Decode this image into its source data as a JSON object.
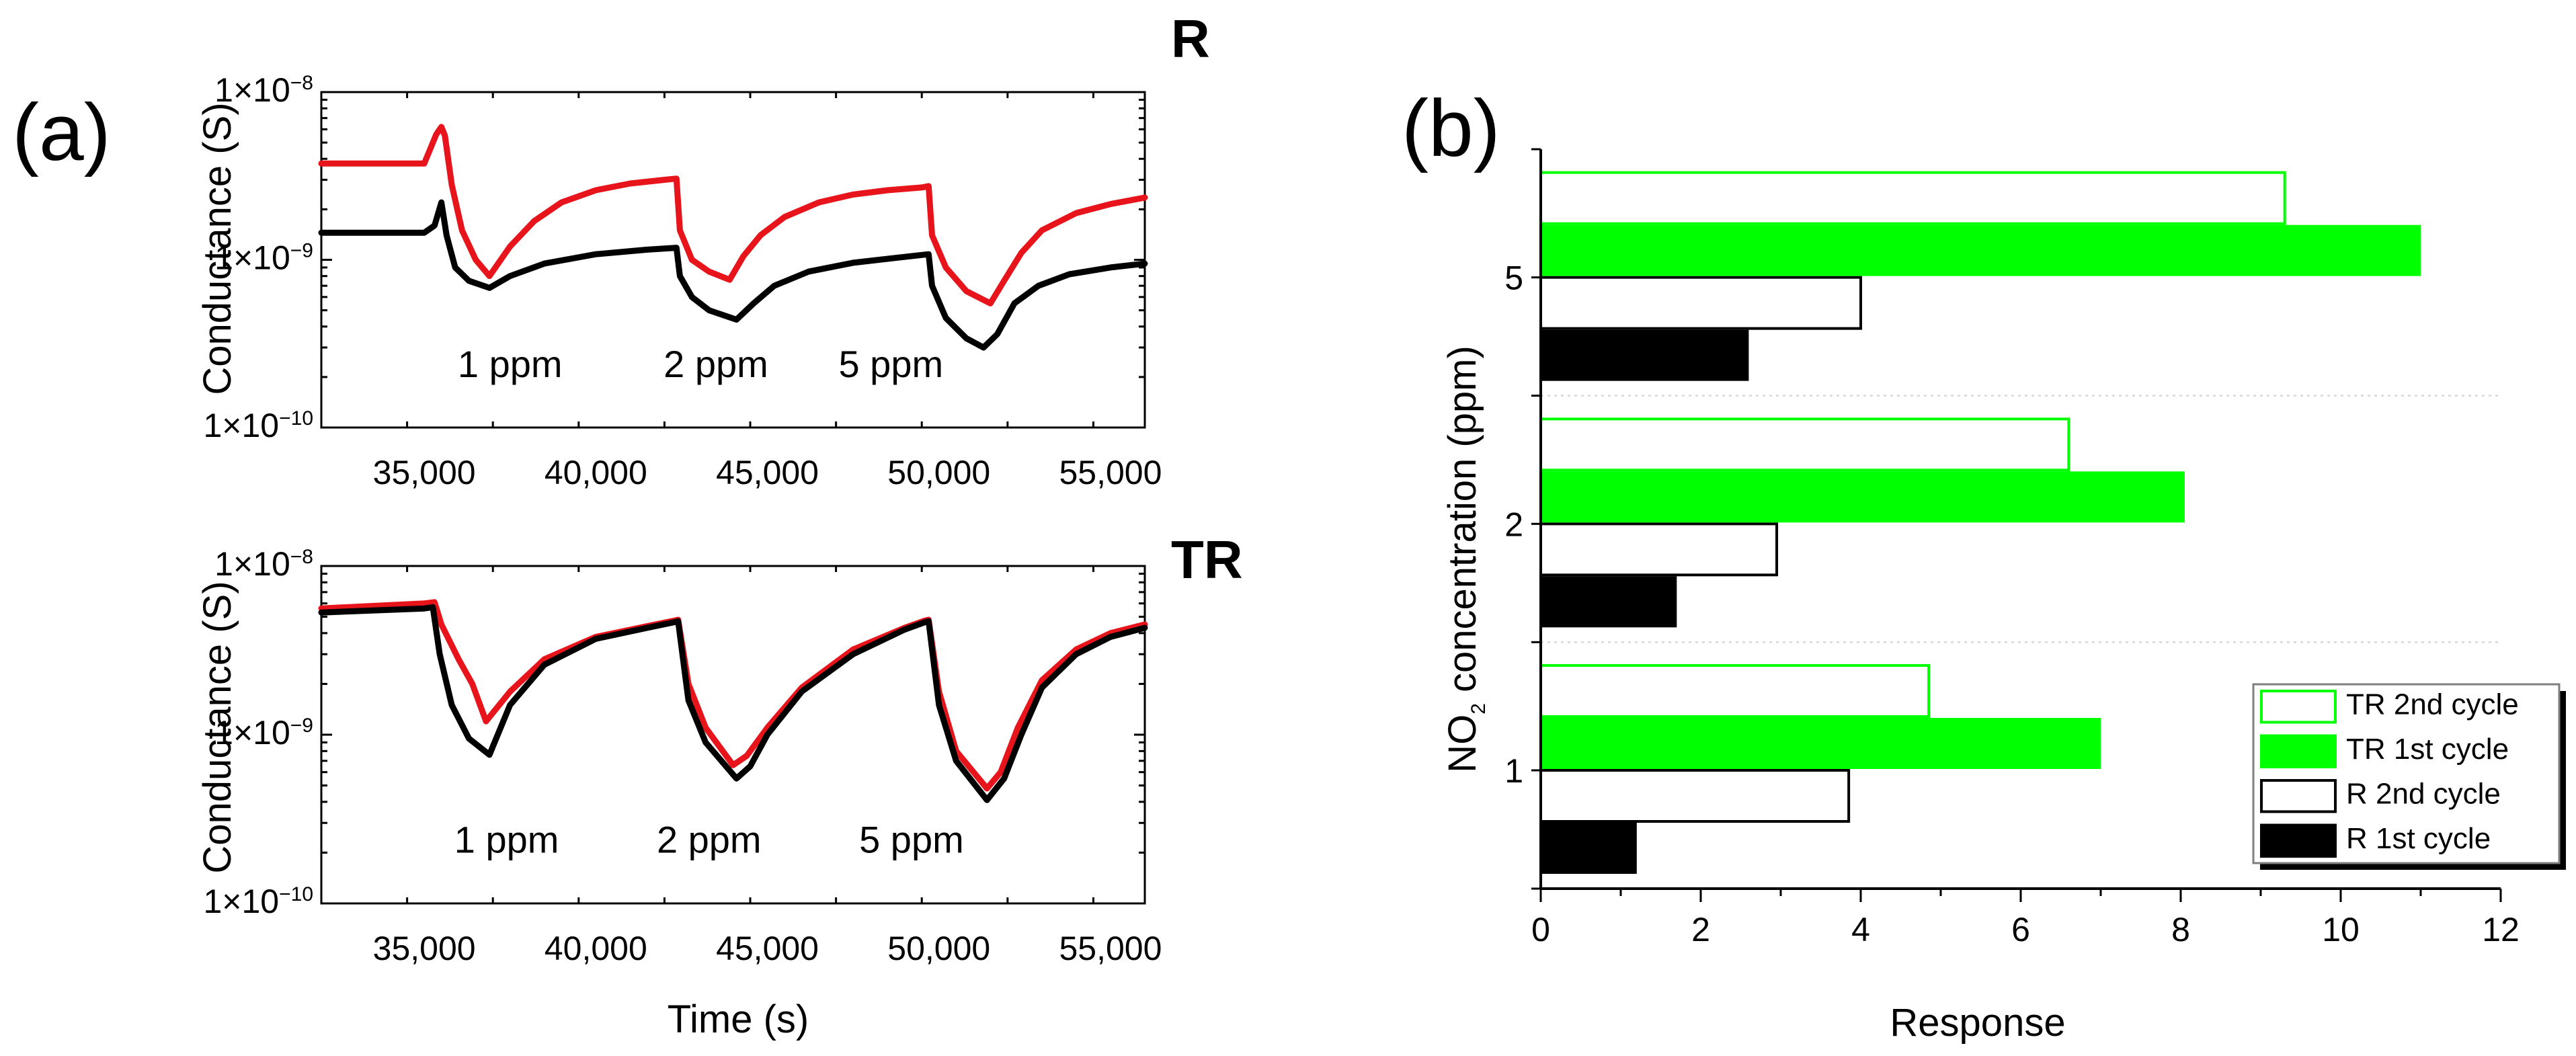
{
  "figure": {
    "panel_a_label": "(a)",
    "panel_b_label": "(b)"
  },
  "chart_data": [
    {
      "type": "line",
      "id": "top",
      "sample_tag": "R",
      "ylabel": "Conductance (S)",
      "xlabel": "",
      "xlim": [
        32000,
        56000
      ],
      "ylim": [
        1e-10,
        1e-08
      ],
      "yscale": "log",
      "x_ticks": [
        35000,
        40000,
        45000,
        50000,
        55000
      ],
      "x_tick_labels": [
        "35,000",
        "40,000",
        "45,000",
        "50,000",
        "55,000"
      ],
      "y_tick_labels": [
        {
          "base": "1×10",
          "exp": "−8",
          "value": 1e-08
        },
        {
          "base": "1×10",
          "exp": "−9",
          "value": 1e-09
        },
        {
          "base": "1×10",
          "exp": "−10",
          "value": 1e-10
        }
      ],
      "annotations": [
        {
          "text": "1 ppm",
          "x": 37500,
          "y": 2e-10
        },
        {
          "text": "2 ppm",
          "x": 43500,
          "y": 2e-10
        },
        {
          "text": "5 ppm",
          "x": 48600,
          "y": 2e-10
        }
      ],
      "series": [
        {
          "name": "red curve",
          "color": "#e8141c",
          "x": [
            32000,
            35000,
            35350,
            35500,
            35600,
            35800,
            36100,
            36500,
            36900,
            37500,
            38200,
            39000,
            40000,
            41000,
            42000,
            42350,
            42450,
            42800,
            43300,
            43900,
            44300,
            44800,
            45500,
            46500,
            47500,
            48500,
            49500,
            49700,
            49800,
            50200,
            50800,
            51500,
            51900,
            52400,
            53000,
            54000,
            55000,
            56000
          ],
          "y": [
            3.75e-09,
            3.75e-09,
            5.6e-09,
            6.2e-09,
            5.5e-09,
            2.8e-09,
            1.5e-09,
            1e-09,
            8e-10,
            1.2e-09,
            1.7e-09,
            2.2e-09,
            2.6e-09,
            2.85e-09,
            3e-09,
            3.05e-09,
            1.5e-09,
            1e-09,
            8.5e-10,
            7.6e-10,
            1.05e-09,
            1.4e-09,
            1.8e-09,
            2.2e-09,
            2.45e-09,
            2.6e-09,
            2.7e-09,
            2.75e-09,
            1.4e-09,
            9e-10,
            6.5e-10,
            5.5e-10,
            7.5e-10,
            1.1e-09,
            1.5e-09,
            1.9e-09,
            2.15e-09,
            2.35e-09
          ]
        },
        {
          "name": "black curve",
          "color": "#000000",
          "x": [
            32000,
            35000,
            35300,
            35500,
            35650,
            35900,
            36300,
            36900,
            37500,
            38500,
            40000,
            41500,
            42350,
            42450,
            42800,
            43300,
            44100,
            44600,
            45200,
            46200,
            47500,
            48800,
            49700,
            49800,
            50200,
            50800,
            51300,
            51700,
            52200,
            52900,
            53800,
            55000,
            56000
          ],
          "y": [
            1.45e-09,
            1.45e-09,
            1.6e-09,
            2.2e-09,
            1.4e-09,
            9e-10,
            7.5e-10,
            6.8e-10,
            8e-10,
            9.5e-10,
            1.08e-09,
            1.15e-09,
            1.18e-09,
            8e-10,
            6e-10,
            5e-10,
            4.4e-10,
            5.5e-10,
            7e-10,
            8.5e-10,
            9.6e-10,
            1.03e-09,
            1.08e-09,
            7e-10,
            4.5e-10,
            3.4e-10,
            3e-10,
            3.6e-10,
            5.5e-10,
            7e-10,
            8.2e-10,
            9e-10,
            9.5e-10
          ]
        }
      ]
    },
    {
      "type": "line",
      "id": "bottom",
      "sample_tag": "TR",
      "ylabel": "Conductance (S)",
      "xlabel": "Time (s)",
      "xlim": [
        32000,
        56000
      ],
      "ylim": [
        1e-10,
        1e-08
      ],
      "yscale": "log",
      "x_ticks": [
        35000,
        40000,
        45000,
        50000,
        55000
      ],
      "x_tick_labels": [
        "35,000",
        "40,000",
        "45,000",
        "50,000",
        "55,000"
      ],
      "y_tick_labels": [
        {
          "base": "1×10",
          "exp": "−8",
          "value": 1e-08
        },
        {
          "base": "1×10",
          "exp": "−9",
          "value": 1e-09
        },
        {
          "base": "1×10",
          "exp": "−10",
          "value": 1e-10
        }
      ],
      "annotations": [
        {
          "text": "1 ppm",
          "x": 37400,
          "y": 2e-10
        },
        {
          "text": "2 ppm",
          "x": 43300,
          "y": 2e-10
        },
        {
          "text": "5 ppm",
          "x": 49200,
          "y": 2e-10
        }
      ],
      "series": [
        {
          "name": "red curve",
          "color": "#e8141c",
          "x": [
            32000,
            35000,
            35300,
            35500,
            36000,
            36400,
            36800,
            37500,
            38500,
            40000,
            41500,
            42300,
            42400,
            42700,
            43200,
            44000,
            44400,
            45000,
            46000,
            47500,
            49000,
            49600,
            49700,
            50000,
            50500,
            51400,
            51800,
            52300,
            53000,
            54000,
            55000,
            56000
          ],
          "y": [
            5.6e-09,
            6e-09,
            6.1e-09,
            4.5e-09,
            2.8e-09,
            2e-09,
            1.2e-09,
            1.8e-09,
            2.8e-09,
            3.8e-09,
            4.4e-09,
            4.75e-09,
            4.8e-09,
            2e-09,
            1.1e-09,
            6.6e-10,
            7.5e-10,
            1.1e-09,
            1.9e-09,
            3.2e-09,
            4.3e-09,
            4.75e-09,
            4.8e-09,
            1.8e-09,
            8e-10,
            4.8e-10,
            6e-10,
            1.1e-09,
            2.1e-09,
            3.2e-09,
            4e-09,
            4.5e-09
          ]
        },
        {
          "name": "black curve",
          "color": "#000000",
          "x": [
            32000,
            35000,
            35250,
            35450,
            35800,
            36300,
            36900,
            37500,
            38500,
            40000,
            41500,
            42300,
            42400,
            42700,
            43200,
            44100,
            44500,
            45000,
            46000,
            47500,
            49000,
            49600,
            49700,
            50000,
            50500,
            51400,
            51900,
            52400,
            53000,
            54000,
            55000,
            56000
          ],
          "y": [
            5.3e-09,
            5.6e-09,
            5.7e-09,
            3e-09,
            1.5e-09,
            9.5e-10,
            7.6e-10,
            1.5e-09,
            2.6e-09,
            3.7e-09,
            4.3e-09,
            4.65e-09,
            4.7e-09,
            1.6e-09,
            9e-10,
            5.5e-10,
            6.5e-10,
            1e-09,
            1.8e-09,
            3e-09,
            4.2e-09,
            4.65e-09,
            4.7e-09,
            1.5e-09,
            7e-10,
            4.1e-10,
            5.5e-10,
            1e-09,
            1.9e-09,
            3e-09,
            3.8e-09,
            4.3e-09
          ]
        }
      ]
    },
    {
      "type": "bar",
      "id": "right",
      "orientation": "horizontal",
      "xlabel": "Response",
      "ylabel_parts": {
        "pre": "NO",
        "sub": "2",
        "post": " concentration (ppm)"
      },
      "xlim": [
        0,
        12
      ],
      "x_ticks": [
        0,
        2,
        4,
        6,
        8,
        10,
        12
      ],
      "categories": [
        "1",
        "2",
        "5"
      ],
      "series": [
        {
          "name": "R 1st cycle",
          "style": "filled",
          "color": "#000000",
          "values": [
            1.2,
            1.7,
            2.6
          ]
        },
        {
          "name": "R 2nd cycle",
          "style": "outline",
          "color": "#000000",
          "values": [
            3.85,
            2.95,
            4.0
          ]
        },
        {
          "name": "TR 1st cycle",
          "style": "filled",
          "color": "#00ff00",
          "values": [
            7.0,
            8.05,
            11.0
          ]
        },
        {
          "name": "TR 2nd cycle",
          "style": "outline",
          "color": "#00ff00",
          "values": [
            4.85,
            6.6,
            9.3
          ]
        }
      ],
      "legend_order": [
        "TR 2nd cycle",
        "TR 1st cycle",
        "R 2nd cycle",
        "R 1st cycle"
      ],
      "legend_position": "bottom-right"
    }
  ]
}
